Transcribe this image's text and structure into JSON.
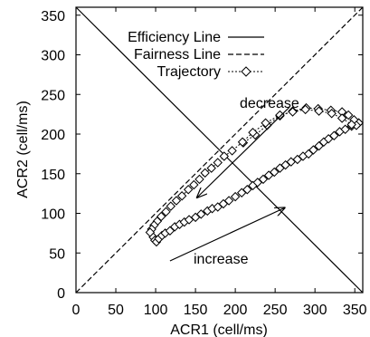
{
  "chart_data": {
    "type": "scatter",
    "xlabel": "ACR1 (cell/ms)",
    "ylabel": "ACR2 (cell/ms)",
    "xlim": [
      0,
      360
    ],
    "ylim": [
      0,
      360
    ],
    "x_ticks": [
      "0",
      "50",
      "100",
      "150",
      "200",
      "250",
      "300",
      "350"
    ],
    "y_ticks": [
      "0",
      "50",
      "100",
      "150",
      "200",
      "250",
      "300",
      "350"
    ],
    "grid": false,
    "legend_position": "top-center",
    "legend": {
      "efficiency": "Efficiency Line",
      "fairness": "Fairness Line",
      "trajectory": "Trajectory"
    },
    "annotations": {
      "decrease": "decrease",
      "increase": "increase"
    },
    "reference_lines": {
      "efficiency": {
        "name": "Efficiency Line",
        "x": [
          0,
          360
        ],
        "y": [
          360,
          0
        ]
      },
      "fairness": {
        "name": "Fairness Line",
        "x": [
          0,
          360
        ],
        "y": [
          0,
          360
        ]
      }
    },
    "arrows": [
      {
        "label": "decrease",
        "from": [
          268,
          234
        ],
        "to": [
          152,
          120
        ]
      },
      {
        "label": "increase",
        "from": [
          118,
          40
        ],
        "to": [
          262,
          107
        ]
      }
    ],
    "series": [
      {
        "name": "Trajectory",
        "segments": [
          {
            "part": "increase",
            "points": [
              [
                97,
                70
              ],
              [
                99,
                66
              ],
              [
                101,
                64
              ],
              [
                104,
                68
              ],
              [
                108,
                72
              ],
              [
                112,
                75
              ],
              [
                118,
                78
              ],
              [
                124,
                83
              ],
              [
                130,
                86
              ],
              [
                136,
                89
              ],
              [
                142,
                92
              ],
              [
                150,
                95
              ],
              [
                157,
                99
              ],
              [
                165,
                103
              ],
              [
                171,
                106
              ],
              [
                178,
                108
              ],
              [
                185,
                112
              ],
              [
                192,
                116
              ],
              [
                200,
                121
              ],
              [
                208,
                126
              ],
              [
                215,
                130
              ],
              [
                222,
                135
              ],
              [
                228,
                139
              ],
              [
                235,
                143
              ],
              [
                242,
                148
              ],
              [
                249,
                152
              ],
              [
                256,
                157
              ],
              [
                263,
                161
              ],
              [
                270,
                165
              ],
              [
                278,
                168
              ],
              [
                285,
                172
              ],
              [
                292,
                175
              ],
              [
                298,
                180
              ],
              [
                305,
                185
              ],
              [
                311,
                190
              ],
              [
                317,
                194
              ],
              [
                324,
                198
              ],
              [
                331,
                203
              ],
              [
                338,
                206
              ],
              [
                346,
                210
              ],
              [
                352,
                213
              ],
              [
                355,
                214
              ]
            ]
          },
          {
            "part": "decrease",
            "points": [
              [
                355,
                214
              ],
              [
                349,
                218
              ],
              [
                342,
                224
              ],
              [
                334,
                228
              ],
              [
                320,
                230
              ],
              [
                304,
                232
              ],
              [
                289,
                233
              ],
              [
                272,
                229
              ],
              [
                256,
                223
              ],
              [
                240,
                211
              ],
              [
                225,
                199
              ],
              [
                210,
                189
              ]
            ]
          },
          {
            "part": "decrease",
            "points": [
              [
                352,
                211
              ],
              [
                346,
                212
              ],
              [
                334,
                220
              ],
              [
                321,
                226
              ],
              [
                305,
                229
              ],
              [
                288,
                231
              ],
              [
                272,
                228
              ],
              [
                256,
                224
              ],
              [
                238,
                214
              ],
              [
                222,
                202
              ],
              [
                209,
                190
              ],
              [
                196,
                179
              ],
              [
                186,
                172
              ],
              [
                178,
                164
              ],
              [
                170,
                157
              ],
              [
                162,
                151
              ],
              [
                155,
                143
              ],
              [
                148,
                136
              ],
              [
                141,
                130
              ],
              [
                133,
                122
              ],
              [
                126,
                116
              ],
              [
                119,
                109
              ],
              [
                113,
                102
              ],
              [
                107,
                96
              ],
              [
                102,
                90
              ],
              [
                98,
                85
              ],
              [
                95,
                80
              ],
              [
                93,
                76
              ]
            ]
          }
        ]
      }
    ]
  }
}
